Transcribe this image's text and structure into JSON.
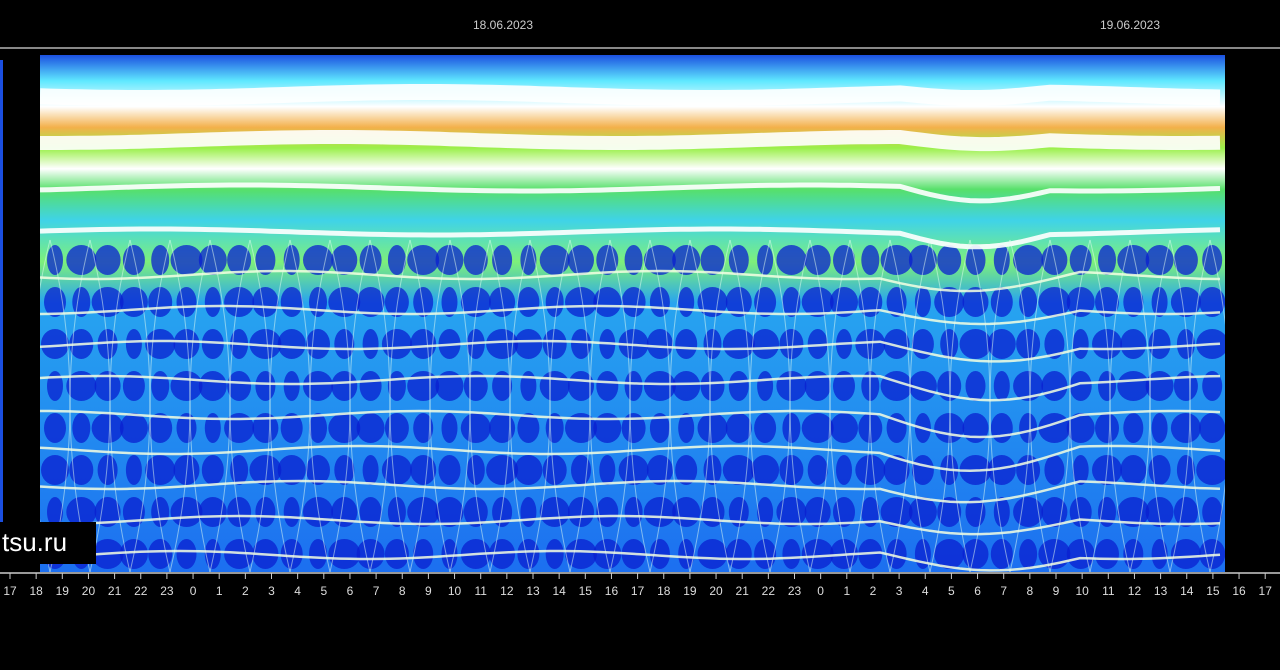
{
  "chart_data": {
    "type": "spectrogram",
    "dates": [
      "18.06.2023",
      "19.06.2023"
    ],
    "categories": [
      "17",
      "18",
      "19",
      "20",
      "21",
      "22",
      "23",
      "0",
      "1",
      "2",
      "3",
      "4",
      "5",
      "6",
      "7",
      "8",
      "9",
      "10",
      "11",
      "12",
      "13",
      "14",
      "15",
      "16",
      "17",
      "18",
      "19",
      "20",
      "21",
      "22",
      "23",
      "0",
      "1",
      "2",
      "3",
      "4",
      "5",
      "6",
      "7",
      "8",
      "9",
      "10",
      "11",
      "12",
      "13",
      "14",
      "15",
      "16",
      "17"
    ],
    "watermark": "tsu.ru"
  }
}
